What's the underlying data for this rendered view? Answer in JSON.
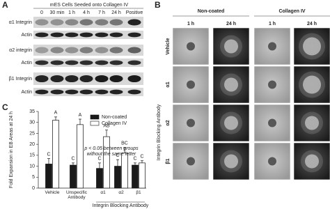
{
  "panel_a": {
    "label": "A",
    "title": "mES Cells Seeded onto Collagen IV",
    "columns": [
      "0",
      "30 min",
      "1 h",
      "4 h",
      "7 h",
      "24 h",
      "Positive"
    ],
    "rows": [
      "α1 Integrin",
      "Actin",
      "α2 integrin",
      "Actin",
      "β1 Integrin",
      "Actin"
    ]
  },
  "panel_b": {
    "label": "B",
    "groups": [
      "Non-coated",
      "Collagen IV"
    ],
    "times": [
      "1 h",
      "24 h",
      "1 h",
      "24 h"
    ],
    "rows": [
      "Vehicle",
      "α1",
      "α2",
      "β1"
    ],
    "row_group": "Integrin Blocking Antibody"
  },
  "chart_data": {
    "type": "bar",
    "panel_label": "C",
    "y_label": "Fold Expansion in EB Areas at 24 h",
    "categories": [
      "Vehicle",
      "Unspecific Antibody",
      "α1",
      "α2",
      "β1"
    ],
    "category_group": "Integrin Blocking Antibody",
    "series": [
      {
        "name": "Non-coated",
        "color": "#1a1a1a",
        "values": [
          11,
          10.5,
          9,
          10,
          10.5
        ],
        "errors": [
          2.5,
          1,
          2.5,
          3,
          1
        ],
        "letters": [
          "C",
          "C",
          "C",
          "C",
          "C"
        ]
      },
      {
        "name": "Collagen IV",
        "color": "#ffffff",
        "values": [
          31,
          29,
          23.5,
          16,
          11.5
        ],
        "errors": [
          1.5,
          2.5,
          3,
          2.5,
          1
        ],
        "letters": [
          "A",
          "A",
          "AB",
          "BC",
          "C"
        ]
      }
    ],
    "ylim": [
      0,
      35
    ],
    "yticks": [
      0,
      5,
      10,
      15,
      20,
      25,
      30,
      35
    ],
    "annotation": [
      "p < 0.05 between groups",
      "without the same letter"
    ]
  }
}
